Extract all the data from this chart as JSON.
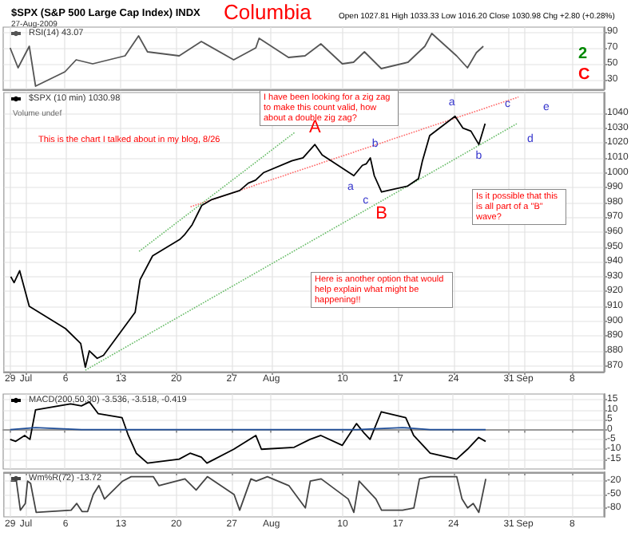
{
  "chart_data": [
    {
      "type": "line",
      "title": "$SPX (S&P 500 Large Cap Index) INDX",
      "subtitle": "27-Aug-2009",
      "annotations": [
        "Columbia",
        "Open 1027.81 High 1033.33 Low 1016.20 Close 1030.98 Chg +2.80 (+0.28%)",
        "2",
        "C"
      ],
      "series": [
        {
          "name": "RSI(14) 43.07",
          "color": "#555555",
          "x": [
            "2009-06-29T02:00",
            "2009-06-30T02:00",
            "2009-07-01T12:00",
            "2009-07-02T07:00",
            "2009-07-06",
            "2009-07-07T10:00",
            "2009-07-09T12:00",
            "2009-07-13T14:00",
            "2009-07-15T07:00",
            "2009-07-16T10:00",
            "2009-07-20T10:00",
            "2009-07-23T05:00",
            "2009-07-27T07:00",
            "2009-07-30T02:00",
            "2009-07-30T12:00",
            "2009-08-03T05:00",
            "2009-08-05T07:00",
            "2009-08-07T07:00",
            "2009-08-10",
            "2009-08-11T10:00",
            "2009-08-12T19:00",
            "2009-08-14T22:00",
            "2009-08-18T07:00",
            "2009-08-20T10:00",
            "2009-08-21T07:00",
            "2009-08-24T10:00",
            "2009-08-25T19:00",
            "2009-08-26T22:00",
            "2009-08-27T19:00"
          ],
          "values": [
            70,
            45,
            72,
            22,
            40,
            55,
            50,
            60,
            85,
            65,
            60,
            78,
            55,
            70,
            82,
            58,
            60,
            75,
            50,
            52,
            65,
            44,
            52,
            72,
            88,
            60,
            45,
            64,
            72
          ]
        }
      ],
      "xlim": [
        "2009-06-28T05:00",
        "2009-09-12"
      ],
      "xticks": [
        {
          "value": "2009-06-29",
          "label": "29"
        },
        {
          "value": "2009-07-01",
          "label": "Jul"
        },
        {
          "value": "2009-07-06",
          "label": "6"
        },
        {
          "value": "2009-07-13",
          "label": "13"
        },
        {
          "value": "2009-07-20",
          "label": "20"
        },
        {
          "value": "2009-07-27",
          "label": "27"
        },
        {
          "value": "2009-08-01",
          "label": "Aug"
        },
        {
          "value": "2009-08-10",
          "label": "10"
        },
        {
          "value": "2009-08-17",
          "label": "17"
        },
        {
          "value": "2009-08-24",
          "label": "24"
        },
        {
          "value": "2009-08-31",
          "label": "31"
        },
        {
          "value": "2009-09-02",
          "label": "Sep"
        },
        {
          "value": "2009-09-08",
          "label": "8"
        }
      ],
      "ylim": [
        18,
        96
      ],
      "yticks": [
        30,
        50,
        70,
        90
      ],
      "tick_labels": "y",
      "grid": true,
      "legend": "top left"
    },
    {
      "type": "line",
      "annotations": [
        "Volume undef",
        "I have been looking for a zig zag to make this count valid, how about a double zig zag?",
        "This is the chart I talked about in my blog, 8/26",
        "Is it possible that this is all part of a \"B\" wave?",
        "Here is another option that would help explain what might be happening!!",
        {
          "text": "A",
          "x": "2009-08-06T12:00",
          "y": 1019
        },
        {
          "text": "B",
          "x": "2009-08-14T22:00",
          "y": 987
        },
        {
          "text": "a",
          "x": "2009-08-11T10:00",
          "y": 998
        },
        {
          "text": "b",
          "x": "2009-08-13T12:00",
          "y": 1010
        },
        {
          "text": "c",
          "x": "2009-08-14T22:00",
          "y": 987
        },
        {
          "text": "a",
          "x": "2009-08-24T05:00",
          "y": 1038
        },
        {
          "text": "b",
          "x": "2009-08-27T05:00",
          "y": 1019
        },
        "c",
        "d",
        "e"
      ],
      "series": [
        {
          "name": "$SPX (10 min) 1030.98",
          "color": "#000000",
          "x": [
            "2009-06-29T02:00",
            "2009-06-29T12:00",
            "2009-06-30T05:00",
            "2009-07-01T10:00",
            "2009-07-06",
            "2009-07-07T22:00",
            "2009-07-08T12:00",
            "2009-07-09",
            "2009-07-10",
            "2009-07-10T19:00",
            "2009-07-14T19:00",
            "2009-07-15T10:00",
            "2009-07-17",
            "2009-07-20T10:00",
            "2009-07-21",
            "2009-07-22",
            "2009-07-23T05:00",
            "2009-07-24T12:00",
            "2009-07-28",
            "2009-07-29T02:00",
            "2009-07-30",
            "2009-07-31",
            "2009-08-03T14:00",
            "2009-08-05",
            "2009-08-06T12:00",
            "2009-08-07T10:00",
            "2009-08-11T10:00",
            "2009-08-12T12:00",
            "2009-08-13",
            "2009-08-13T12:00",
            "2009-08-14",
            "2009-08-14T22:00",
            "2009-08-18T05:00",
            "2009-08-19T14:00",
            "2009-08-20T02:00",
            "2009-08-21",
            "2009-08-24T05:00",
            "2009-08-25T05:00",
            "2009-08-26T05:00",
            "2009-08-27T05:00",
            "2009-08-28"
          ],
          "values": [
            930,
            926,
            934,
            910,
            895,
            885,
            869,
            880,
            875,
            877,
            906,
            928,
            944,
            955,
            958,
            965,
            978,
            982,
            988,
            993,
            995,
            1000,
            1008,
            1010,
            1019,
            1012,
            998,
            1005,
            1006,
            1010,
            998,
            987,
            991,
            996,
            1008,
            1025,
            1038,
            1030,
            1028,
            1019,
            1033
          ]
        },
        {
          "color": "#ff6666",
          "line_style": "dotted",
          "x": [
            "2009-07-21T19:00",
            "2009-09-01T05:00"
          ],
          "values": [
            977,
            1051
          ]
        },
        {
          "color": "#66bb66",
          "line_style": "dotted",
          "x": [
            "2009-07-08T12:00",
            "2009-09-01"
          ],
          "values": [
            867,
            1033
          ]
        },
        {
          "color": "#66bb66",
          "line_style": "dotted",
          "x": [
            "2009-07-15T07:00",
            "2009-08-03T22:00"
          ],
          "values": [
            947,
            1027
          ]
        }
      ],
      "xlim": [
        "2009-06-28T05:00",
        "2009-09-12"
      ],
      "xticks": [
        {
          "value": "2009-06-29",
          "label": "29"
        },
        {
          "value": "2009-07-01",
          "label": "Jul"
        },
        {
          "value": "2009-07-06",
          "label": "6"
        },
        {
          "value": "2009-07-13",
          "label": "13"
        },
        {
          "value": "2009-07-20",
          "label": "20"
        },
        {
          "value": "2009-07-27",
          "label": "27"
        },
        {
          "value": "2009-08-01",
          "label": "Aug"
        },
        {
          "value": "2009-08-10",
          "label": "10"
        },
        {
          "value": "2009-08-17",
          "label": "17"
        },
        {
          "value": "2009-08-24",
          "label": "24"
        },
        {
          "value": "2009-08-31",
          "label": "31"
        },
        {
          "value": "2009-09-02",
          "label": "Sep"
        },
        {
          "value": "2009-09-08",
          "label": "8"
        }
      ],
      "ylim": [
        866,
        1054
      ],
      "yticks": [
        870,
        880,
        890,
        900,
        910,
        920,
        930,
        940,
        950,
        960,
        970,
        980,
        990,
        1000,
        1010,
        1020,
        1030,
        1040
      ],
      "grid": true,
      "legend": "top left"
    },
    {
      "type": "line",
      "series": [
        {
          "name": "MACD(200,50,30) -3.536, -3.518, -0.419",
          "color": "#000000",
          "x": [
            "2009-06-29T02:00",
            "2009-06-29T19:00",
            "2009-06-30T22:00",
            "2009-07-01T14:00",
            "2009-07-02T07:00",
            "2009-07-06T17:00",
            "2009-07-08T02:00",
            "2009-07-09T02:00",
            "2009-07-10T05:00",
            "2009-07-13T05:00",
            "2009-07-14",
            "2009-07-15",
            "2009-07-16T10:00",
            "2009-07-20T10:00",
            "2009-07-21T19:00",
            "2009-07-23T05:00",
            "2009-07-23T22:00",
            "2009-07-27T07:00",
            "2009-07-30T02:00",
            "2009-07-30T19:00",
            "2009-08-03T22:00",
            "2009-08-05T22:00",
            "2009-08-07T07:00",
            "2009-08-10",
            "2009-08-11T19:00",
            "2009-08-12T19:00",
            "2009-08-13T12:00",
            "2009-08-14T22:00",
            "2009-08-18",
            "2009-08-19",
            "2009-08-21T02:00",
            "2009-08-24T10:00",
            "2009-08-25T19:00",
            "2009-08-27T05:00",
            "2009-08-28T02:00"
          ],
          "values": [
            -5,
            -6,
            -3,
            -5,
            10,
            13,
            12,
            14,
            8,
            6,
            -3,
            -12,
            -17,
            -15,
            -12,
            -14,
            -17,
            -10,
            -3,
            -10,
            -9,
            -5,
            -3,
            -8,
            3,
            -2,
            -5,
            9,
            6,
            -3,
            -12,
            -15,
            -10,
            -4,
            -6
          ]
        },
        {
          "color": "#1f4e99",
          "x": [
            "2009-06-29T02:00",
            "2009-07-02T07:00",
            "2009-07-08T02:00",
            "2009-07-14",
            "2009-07-20T10:00",
            "2009-07-27T07:00",
            "2009-08-03T22:00",
            "2009-08-11T19:00",
            "2009-08-17T14:00",
            "2009-08-21T02:00",
            "2009-08-28T02:00"
          ],
          "values": [
            0,
            1,
            0,
            0,
            0,
            0,
            0,
            0,
            1,
            0,
            0
          ]
        }
      ],
      "xlim": [
        "2009-06-28T05:00",
        "2009-09-12"
      ],
      "xticks": [
        {
          "value": "2009-06-29",
          "label": "29"
        },
        {
          "value": "2009-07-01",
          "label": "Jul"
        },
        {
          "value": "2009-07-06",
          "label": "6"
        },
        {
          "value": "2009-07-13",
          "label": "13"
        },
        {
          "value": "2009-07-20",
          "label": "20"
        },
        {
          "value": "2009-07-27",
          "label": "27"
        },
        {
          "value": "2009-08-01",
          "label": "Aug"
        },
        {
          "value": "2009-08-10",
          "label": "10"
        },
        {
          "value": "2009-08-17",
          "label": "17"
        },
        {
          "value": "2009-08-24",
          "label": "24"
        },
        {
          "value": "2009-08-31",
          "label": "31"
        },
        {
          "value": "2009-09-02",
          "label": "Sep"
        },
        {
          "value": "2009-09-08",
          "label": "8"
        }
      ],
      "ylim": [
        -20,
        18
      ],
      "yticks": [
        -15,
        -10,
        -5,
        0,
        5,
        10,
        15
      ],
      "tick_labels": "y",
      "grid": true,
      "legend": "top left"
    },
    {
      "type": "line",
      "series": [
        {
          "name": "Wm%R(72) -13.72",
          "color": "#444444",
          "x": [
            "2009-06-29T02:00",
            "2009-06-29T19:00",
            "2009-06-30T07:00",
            "2009-06-30T22:00",
            "2009-07-01T05:00",
            "2009-07-01T14:00",
            "2009-07-02T07:00",
            "2009-07-06T17:00",
            "2009-07-07T10:00",
            "2009-07-08T02:00",
            "2009-07-08T19:00",
            "2009-07-09T12:00",
            "2009-07-10T05:00",
            "2009-07-10T22:00",
            "2009-07-13T05:00",
            "2009-07-14T07:00",
            "2009-07-17T02:00",
            "2009-07-17T19:00",
            "2009-07-21T02:00",
            "2009-07-22T12:00",
            "2009-07-23T22:00",
            "2009-07-27T07:00",
            "2009-07-28",
            "2009-07-29T10:00",
            "2009-07-30T02:00",
            "2009-07-31T12:00",
            "2009-08-03T05:00",
            "2009-08-05T07:00",
            "2009-08-05T22:00",
            "2009-08-07T07:00",
            "2009-08-10T17:00",
            "2009-08-11T10:00",
            "2009-08-12T02:00",
            "2009-08-14T05:00",
            "2009-08-14T22:00",
            "2009-08-17T14:00",
            "2009-08-19",
            "2009-08-19T17:00",
            "2009-08-21T02:00",
            "2009-08-24T10:00",
            "2009-08-25T02:00",
            "2009-08-25T19:00",
            "2009-08-26T12:00",
            "2009-08-27T05:00",
            "2009-08-28T02:00"
          ],
          "values": [
            -20,
            -20,
            -85,
            -70,
            -20,
            -25,
            -90,
            -85,
            -70,
            -88,
            -88,
            -50,
            -30,
            -60,
            -20,
            -10,
            -10,
            -30,
            -15,
            -40,
            -10,
            -50,
            -85,
            -15,
            -20,
            -10,
            -30,
            -80,
            -20,
            -15,
            -60,
            -90,
            -20,
            -60,
            -85,
            -85,
            -80,
            -15,
            -10,
            -10,
            -60,
            -80,
            -70,
            -90,
            -15
          ]
        }
      ],
      "xlim": [
        "2009-06-28T05:00",
        "2009-09-12"
      ],
      "xticks": [
        {
          "value": "2009-06-29",
          "label": "29"
        },
        {
          "value": "2009-07-01",
          "label": "Jul"
        },
        {
          "value": "2009-07-06",
          "label": "6"
        },
        {
          "value": "2009-07-13",
          "label": "13"
        },
        {
          "value": "2009-07-20",
          "label": "20"
        },
        {
          "value": "2009-07-27",
          "label": "27"
        },
        {
          "value": "2009-08-01",
          "label": "Aug"
        },
        {
          "value": "2009-08-10",
          "label": "10"
        },
        {
          "value": "2009-08-17",
          "label": "17"
        },
        {
          "value": "2009-08-24",
          "label": "24"
        },
        {
          "value": "2009-08-31",
          "label": "31"
        },
        {
          "value": "2009-09-02",
          "label": "Sep"
        },
        {
          "value": "2009-09-08",
          "label": "8"
        }
      ],
      "ylim": [
        -100,
        0
      ],
      "yticks": [
        -80,
        -50,
        -20
      ],
      "grid": true,
      "legend": "top left"
    }
  ]
}
